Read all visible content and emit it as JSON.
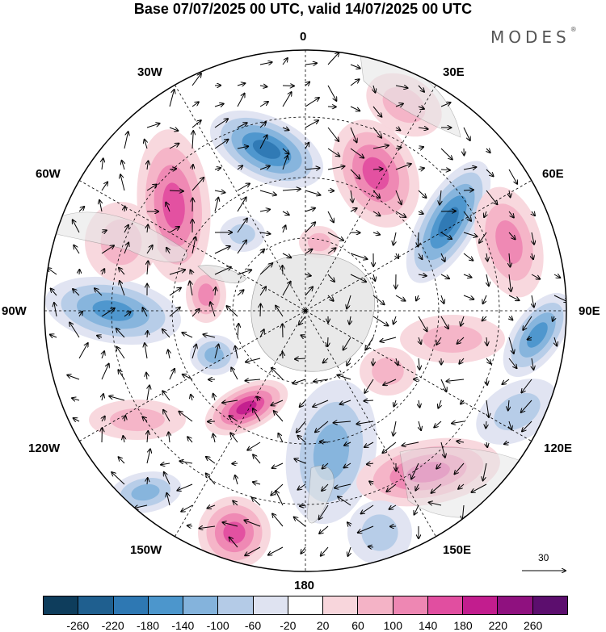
{
  "header": {
    "title": "Base 07/07/2025 00 UTC, valid 14/07/2025 00 UTC",
    "brand": "MODES",
    "brand_mark": "®"
  },
  "map": {
    "projection": "south-polar-stereographic",
    "longitude_labels": {
      "top": "0",
      "top_right": "30E",
      "upper_right": "60E",
      "right": "90E",
      "lower_right": "120E",
      "bottom_right": "150E",
      "bottom": "180",
      "bottom_left": "150W",
      "lower_left": "120W",
      "left": "90W",
      "upper_left": "60W",
      "top_left": "30W"
    },
    "land_color": "#e6e6e6",
    "negative_color": "#4f8fc7",
    "positive_color": "#e85a9a",
    "reference_vector": {
      "value": "30"
    }
  },
  "colorbar": {
    "ticks": [
      "-260",
      "-220",
      "-180",
      "-140",
      "-100",
      "-60",
      "-20",
      "20",
      "60",
      "100",
      "140",
      "180",
      "220",
      "260"
    ],
    "colors": [
      "#0e3d5c",
      "#1f5f8f",
      "#2e78b3",
      "#4c96cc",
      "#84b3dc",
      "#b4cbe7",
      "#dfe3f1",
      "#ffffff",
      "#f8d6dc",
      "#f4b3c6",
      "#ee87b3",
      "#e14ea0",
      "#c21d8e",
      "#8f117f",
      "#5c0e6e"
    ]
  }
}
